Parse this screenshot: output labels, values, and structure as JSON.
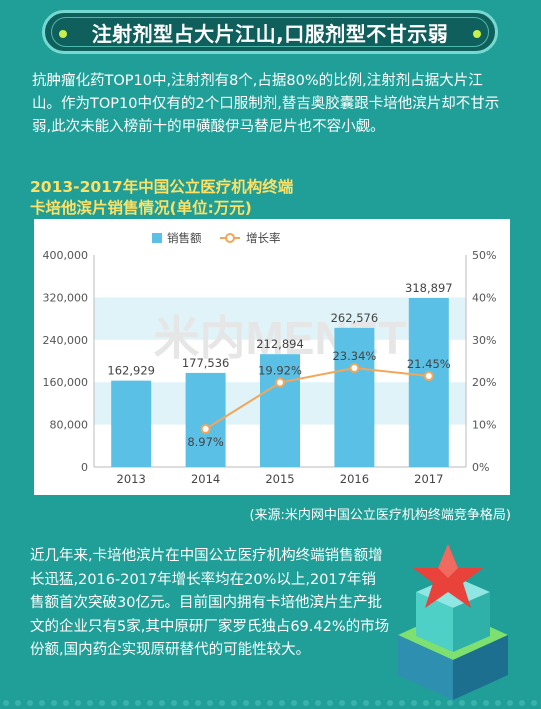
{
  "banner": {
    "title": "注射剂型占大片江山,口服剂型不甘示弱"
  },
  "intro": "抗肿瘤化药TOP10中,注射剂有8个,占据80%的比例,注射剂占据大片江山。作为TOP10中仅有的2个口服制剂,替吉奥胶囊跟卡培他滨片却不甘示弱,此次未能入榜前十的甲磺酸伊马替尼片也不容小觑。",
  "chart_heading": {
    "line1": "2013-2017年中国公立医疗机构终端",
    "line2": "卡培他滨片销售情况(单位:万元)"
  },
  "chart_data": {
    "type": "bar",
    "categories": [
      "2013",
      "2014",
      "2015",
      "2016",
      "2017"
    ],
    "series": [
      {
        "name": "销售额",
        "type": "bar",
        "values": [
          162929,
          177536,
          212894,
          262576,
          318897
        ],
        "labels": [
          "162,929",
          "177,536",
          "212,894",
          "262,576",
          "318,897"
        ],
        "color": "#5bc0e6"
      },
      {
        "name": "增长率",
        "type": "line",
        "values": [
          null,
          8.97,
          19.92,
          23.34,
          21.45
        ],
        "labels": [
          "",
          "8.97%",
          "19.92%",
          "23.34%",
          "21.45%"
        ],
        "color": "#f2a65a"
      }
    ],
    "y_left": {
      "min": 0,
      "max": 400000,
      "ticks": [
        "0",
        "80,000",
        "160,000",
        "240,000",
        "320,000",
        "400,000"
      ]
    },
    "y_right": {
      "min": 0,
      "max": 50,
      "ticks": [
        "0%",
        "10%",
        "20%",
        "30%",
        "40%",
        "50%"
      ]
    },
    "legend_position": "top-center",
    "watermark": "米内MENET"
  },
  "source": "(来源:米内网中国公立医疗机构终端竞争格局)",
  "conclusion": "近几年来,卡培他滨片在中国公立医疗机构终端销售额增长迅猛,2016-2017年增长率均在20%以上,2017年销售额首次突破30亿元。目前国内拥有卡培他滨片生产批文的企业只有5家,其中原研厂家罗氏独占69.42%的市场份额,国内药企实现原研替代的可能性较大。",
  "colors": {
    "background": "#1f9f98",
    "banner": "#0f5f5c",
    "heading": "#ffe063",
    "bar": "#5bc0e6",
    "line": "#f2a65a",
    "band": "#dff3f8"
  }
}
